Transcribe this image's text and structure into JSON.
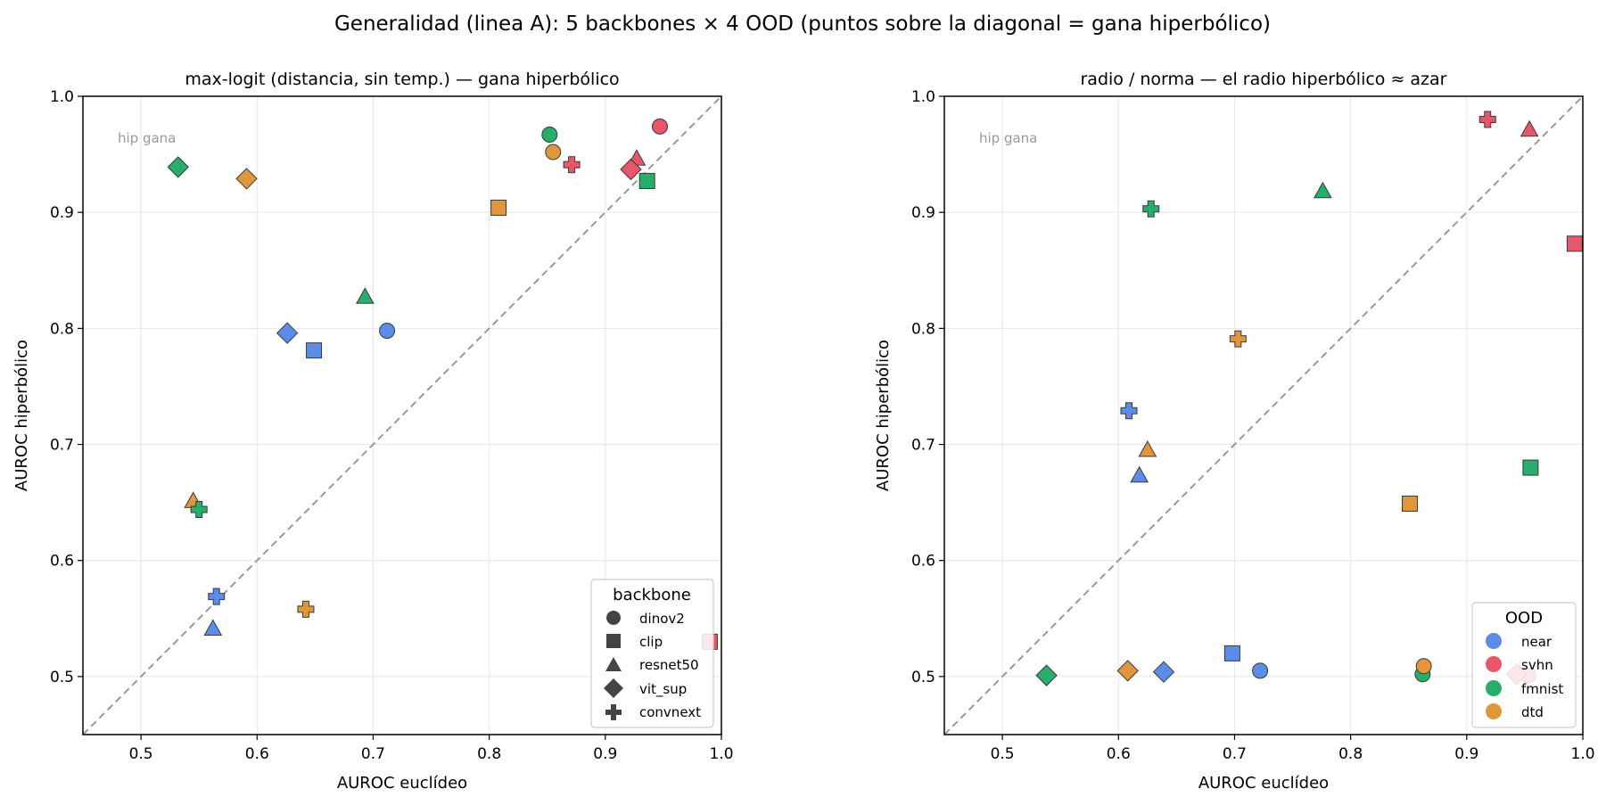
{
  "suptitle": "Generalidad (linea A): 5 backbones × 4 OOD (puntos sobre la diagonal = gana hiperbólico)",
  "colors": {
    "near": "#5b8ce8",
    "svhn": "#e8566a",
    "fmnist": "#27ae6a",
    "dtd": "#e0963a"
  },
  "chart_data": [
    {
      "type": "scatter",
      "title": "max-logit (distancia, sin temp.) — gana hiperbólico",
      "xlabel": "AUROC euclídeo",
      "ylabel": "AUROC hiperbólico",
      "xlim": [
        0.45,
        1.0
      ],
      "ylim": [
        0.45,
        1.0
      ],
      "xticks": [
        "0.5",
        "0.6",
        "0.7",
        "0.8",
        "0.9",
        "1.0"
      ],
      "yticks": [
        "0.5",
        "0.6",
        "0.7",
        "0.8",
        "0.9",
        "1.0"
      ],
      "grid": true,
      "diagonal": true,
      "annotation": "hip gana",
      "legend": {
        "title": "backbone",
        "placement": "lower-right",
        "entries": [
          {
            "label": "dinov2",
            "marker": "circle"
          },
          {
            "label": "clip",
            "marker": "square"
          },
          {
            "label": "resnet50",
            "marker": "triangle"
          },
          {
            "label": "vit_sup",
            "marker": "diamond"
          },
          {
            "label": "convnext",
            "marker": "plus"
          }
        ]
      },
      "points": [
        {
          "backbone": "dinov2",
          "ood": "near",
          "x": 0.712,
          "y": 0.798
        },
        {
          "backbone": "dinov2",
          "ood": "svhn",
          "x": 0.947,
          "y": 0.974
        },
        {
          "backbone": "dinov2",
          "ood": "fmnist",
          "x": 0.852,
          "y": 0.967
        },
        {
          "backbone": "dinov2",
          "ood": "dtd",
          "x": 0.855,
          "y": 0.952
        },
        {
          "backbone": "clip",
          "ood": "near",
          "x": 0.649,
          "y": 0.781
        },
        {
          "backbone": "clip",
          "ood": "svhn",
          "x": 0.99,
          "y": 0.53
        },
        {
          "backbone": "clip",
          "ood": "fmnist",
          "x": 0.936,
          "y": 0.927
        },
        {
          "backbone": "clip",
          "ood": "dtd",
          "x": 0.808,
          "y": 0.904
        },
        {
          "backbone": "resnet50",
          "ood": "near",
          "x": 0.562,
          "y": 0.541
        },
        {
          "backbone": "resnet50",
          "ood": "svhn",
          "x": 0.927,
          "y": 0.946
        },
        {
          "backbone": "resnet50",
          "ood": "fmnist",
          "x": 0.693,
          "y": 0.827
        },
        {
          "backbone": "resnet50",
          "ood": "dtd",
          "x": 0.545,
          "y": 0.651
        },
        {
          "backbone": "vit_sup",
          "ood": "near",
          "x": 0.626,
          "y": 0.796
        },
        {
          "backbone": "vit_sup",
          "ood": "svhn",
          "x": 0.922,
          "y": 0.937
        },
        {
          "backbone": "vit_sup",
          "ood": "fmnist",
          "x": 0.532,
          "y": 0.939
        },
        {
          "backbone": "vit_sup",
          "ood": "dtd",
          "x": 0.591,
          "y": 0.929
        },
        {
          "backbone": "convnext",
          "ood": "near",
          "x": 0.565,
          "y": 0.569
        },
        {
          "backbone": "convnext",
          "ood": "svhn",
          "x": 0.871,
          "y": 0.941
        },
        {
          "backbone": "convnext",
          "ood": "fmnist",
          "x": 0.55,
          "y": 0.644
        },
        {
          "backbone": "convnext",
          "ood": "dtd",
          "x": 0.642,
          "y": 0.558
        }
      ]
    },
    {
      "type": "scatter",
      "title": "radio / norma — el radio hiperbólico ≈ azar",
      "xlabel": "AUROC euclídeo",
      "ylabel": "AUROC hiperbólico",
      "xlim": [
        0.45,
        1.0
      ],
      "ylim": [
        0.45,
        1.0
      ],
      "xticks": [
        "0.5",
        "0.6",
        "0.7",
        "0.8",
        "0.9",
        "1.0"
      ],
      "yticks": [
        "0.5",
        "0.6",
        "0.7",
        "0.8",
        "0.9",
        "1.0"
      ],
      "grid": true,
      "diagonal": true,
      "annotation": "hip gana",
      "legend": {
        "title": "OOD",
        "placement": "lower-right",
        "entries": [
          {
            "label": "near",
            "color": "#5b8ce8"
          },
          {
            "label": "svhn",
            "color": "#e8566a"
          },
          {
            "label": "fmnist",
            "color": "#27ae6a"
          },
          {
            "label": "dtd",
            "color": "#e0963a"
          }
        ]
      },
      "points": [
        {
          "backbone": "dinov2",
          "ood": "near",
          "x": 0.722,
          "y": 0.505
        },
        {
          "backbone": "dinov2",
          "ood": "svhn",
          "x": 0.953,
          "y": 0.501
        },
        {
          "backbone": "dinov2",
          "ood": "fmnist",
          "x": 0.862,
          "y": 0.502
        },
        {
          "backbone": "dinov2",
          "ood": "dtd",
          "x": 0.863,
          "y": 0.509
        },
        {
          "backbone": "clip",
          "ood": "near",
          "x": 0.698,
          "y": 0.52
        },
        {
          "backbone": "clip",
          "ood": "svhn",
          "x": 0.993,
          "y": 0.873
        },
        {
          "backbone": "clip",
          "ood": "fmnist",
          "x": 0.955,
          "y": 0.68
        },
        {
          "backbone": "clip",
          "ood": "dtd",
          "x": 0.851,
          "y": 0.649
        },
        {
          "backbone": "resnet50",
          "ood": "near",
          "x": 0.618,
          "y": 0.673
        },
        {
          "backbone": "resnet50",
          "ood": "svhn",
          "x": 0.954,
          "y": 0.971
        },
        {
          "backbone": "resnet50",
          "ood": "fmnist",
          "x": 0.776,
          "y": 0.918
        },
        {
          "backbone": "resnet50",
          "ood": "dtd",
          "x": 0.625,
          "y": 0.695
        },
        {
          "backbone": "vit_sup",
          "ood": "near",
          "x": 0.639,
          "y": 0.504
        },
        {
          "backbone": "vit_sup",
          "ood": "svhn",
          "x": 0.943,
          "y": 0.502
        },
        {
          "backbone": "vit_sup",
          "ood": "fmnist",
          "x": 0.538,
          "y": 0.501
        },
        {
          "backbone": "vit_sup",
          "ood": "dtd",
          "x": 0.608,
          "y": 0.505
        },
        {
          "backbone": "convnext",
          "ood": "near",
          "x": 0.609,
          "y": 0.729
        },
        {
          "backbone": "convnext",
          "ood": "svhn",
          "x": 0.918,
          "y": 0.98
        },
        {
          "backbone": "convnext",
          "ood": "fmnist",
          "x": 0.628,
          "y": 0.903
        },
        {
          "backbone": "convnext",
          "ood": "dtd",
          "x": 0.703,
          "y": 0.791
        }
      ]
    }
  ]
}
